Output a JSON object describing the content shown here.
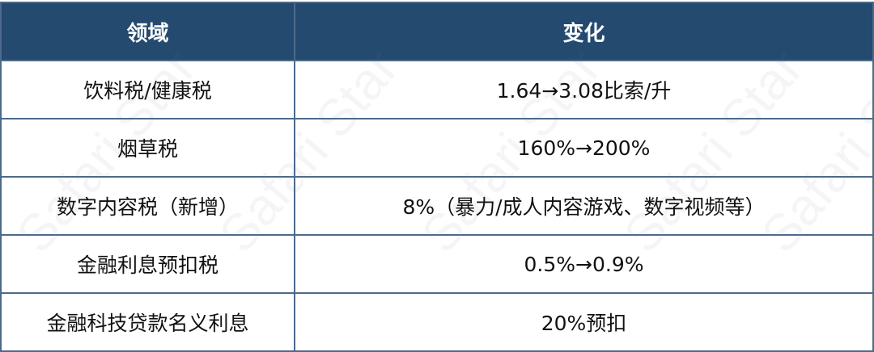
{
  "table": {
    "headers": [
      "领域",
      "变化"
    ],
    "rows": [
      [
        "饮料税/健康税",
        "1.64→3.08比索/升"
      ],
      [
        "烟草税",
        "160%→200%"
      ],
      [
        "数字内容税（新增）",
        "8%（暴力/成人内容游戏、数字视频等）"
      ],
      [
        "金融利息预扣税",
        "0.5%→0.9%"
      ],
      [
        "金融科技贷款名义利息",
        "20%预扣"
      ]
    ]
  },
  "colors": {
    "header_bg": "#244a70",
    "header_text": "#ffffff",
    "border": "#4d6a8a"
  },
  "watermark": "Safari Star"
}
